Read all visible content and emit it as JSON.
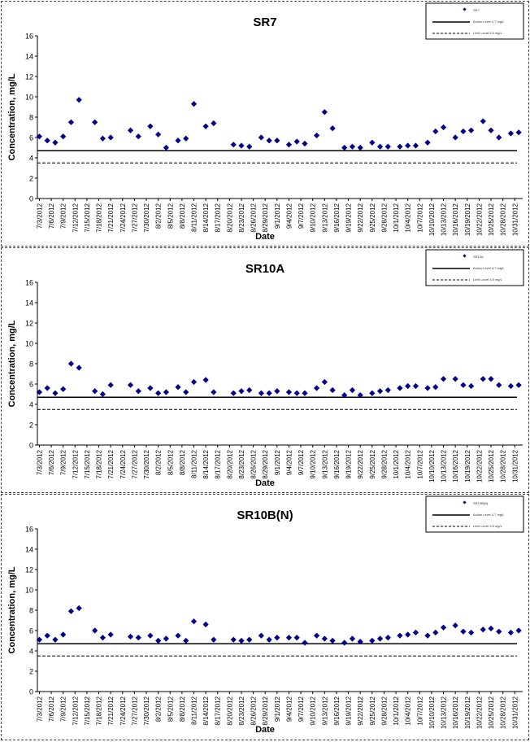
{
  "chart_data": [
    {
      "type": "scatter",
      "title": "SR7",
      "xlabel": "Date",
      "ylabel": "Concentration, mg/L",
      "ylim": [
        0,
        16
      ],
      "yticks": [
        "0",
        "2",
        "4",
        "6",
        "8",
        "10",
        "12",
        "14",
        "16"
      ],
      "xticks": [
        "7/3/2012",
        "7/6/2012",
        "7/9/2012",
        "7/12/2012",
        "7/15/2012",
        "7/18/2012",
        "7/21/2012",
        "7/24/2012",
        "7/27/2012",
        "7/30/2012",
        "8/2/2012",
        "8/5/2012",
        "8/8/2012",
        "8/11/2012",
        "8/14/2012",
        "8/17/2012",
        "8/20/2012",
        "8/23/2012",
        "8/26/2012",
        "8/29/2012",
        "9/1/2012",
        "9/4/2012",
        "9/7/2012",
        "9/10/2012",
        "9/13/2012",
        "9/16/2012",
        "9/19/2012",
        "9/22/2012",
        "9/25/2012",
        "9/28/2012",
        "10/1/2012",
        "10/4/2012",
        "10/7/2012",
        "10/10/2012",
        "10/13/2012",
        "10/16/2012",
        "10/19/2012",
        "10/22/2012",
        "10/25/2012",
        "10/28/2012",
        "10/31/2012"
      ],
      "grid": false,
      "legend_position": "top-right",
      "legend": [
        "SR7",
        "Action Level 4.7 mg/L",
        "Limit Level 3.5 mg/L"
      ],
      "hlines": [
        4.7,
        3.5
      ],
      "x": [
        "7/3/2012",
        "7/5/2012",
        "7/7/2012",
        "7/9/2012",
        "7/11/2012",
        "7/13/2012",
        "7/17/2012",
        "7/19/2012",
        "7/21/2012",
        "7/26/2012",
        "7/28/2012",
        "7/31/2012",
        "8/2/2012",
        "8/4/2012",
        "8/7/2012",
        "8/9/2012",
        "8/11/2012",
        "8/14/2012",
        "8/16/2012",
        "8/21/2012",
        "8/23/2012",
        "8/25/2012",
        "8/28/2012",
        "8/30/2012",
        "9/1/2012",
        "9/4/2012",
        "9/6/2012",
        "9/8/2012",
        "9/11/2012",
        "9/13/2012",
        "9/15/2012",
        "9/18/2012",
        "9/20/2012",
        "9/22/2012",
        "9/25/2012",
        "9/27/2012",
        "9/29/2012",
        "10/2/2012",
        "10/4/2012",
        "10/6/2012",
        "10/9/2012",
        "10/11/2012",
        "10/13/2012",
        "10/16/2012",
        "10/18/2012",
        "10/20/2012",
        "10/23/2012",
        "10/25/2012",
        "10/27/2012",
        "10/30/2012",
        "11/1/2012"
      ],
      "y": [
        6.1,
        5.7,
        5.5,
        6.1,
        7.5,
        9.7,
        7.5,
        5.9,
        6.0,
        6.7,
        6.1,
        7.1,
        6.3,
        5.0,
        5.7,
        5.9,
        9.3,
        7.1,
        7.4,
        5.3,
        5.2,
        5.1,
        6.0,
        5.7,
        5.7,
        5.3,
        5.6,
        5.4,
        6.2,
        8.5,
        6.9,
        5.0,
        5.1,
        5.0,
        5.5,
        5.1,
        5.1,
        5.1,
        5.2,
        5.2,
        5.5,
        6.6,
        7.0,
        6.0,
        6.6,
        6.7,
        7.6,
        6.7,
        6.0,
        6.4,
        6.5
      ]
    },
    {
      "type": "scatter",
      "title": "SR10A",
      "xlabel": "Date",
      "ylabel": "Concentration, mg/L",
      "ylim": [
        0,
        16
      ],
      "yticks": [
        "0",
        "2",
        "4",
        "6",
        "8",
        "10",
        "12",
        "14",
        "16"
      ],
      "xticks": [
        "7/3/2012",
        "7/6/2012",
        "7/9/2012",
        "7/12/2012",
        "7/15/2012",
        "7/18/2012",
        "7/21/2012",
        "7/24/2012",
        "7/27/2012",
        "7/30/2012",
        "8/2/2012",
        "8/5/2012",
        "8/8/2012",
        "8/11/2012",
        "8/14/2012",
        "8/17/2012",
        "8/20/2012",
        "8/23/2012",
        "8/26/2012",
        "8/29/2012",
        "9/1/2012",
        "9/4/2012",
        "9/7/2012",
        "9/10/2012",
        "9/13/2012",
        "9/16/2012",
        "9/19/2012",
        "9/22/2012",
        "9/25/2012",
        "9/28/2012",
        "10/1/2012",
        "10/4/2012",
        "10/7/2012",
        "10/10/2012",
        "10/13/2012",
        "10/16/2012",
        "10/19/2012",
        "10/22/2012",
        "10/25/2012",
        "10/28/2012",
        "10/31/2012"
      ],
      "grid": false,
      "legend_position": "top-right",
      "legend": [
        "SR10A",
        "Action Level 4.7 mg/L",
        "Limit Level 3.5 mg/L"
      ],
      "hlines": [
        4.7,
        3.5
      ],
      "x": [
        "7/3/2012",
        "7/5/2012",
        "7/7/2012",
        "7/9/2012",
        "7/11/2012",
        "7/13/2012",
        "7/17/2012",
        "7/19/2012",
        "7/21/2012",
        "7/26/2012",
        "7/28/2012",
        "7/31/2012",
        "8/2/2012",
        "8/4/2012",
        "8/7/2012",
        "8/9/2012",
        "8/11/2012",
        "8/14/2012",
        "8/16/2012",
        "8/21/2012",
        "8/23/2012",
        "8/25/2012",
        "8/28/2012",
        "8/30/2012",
        "9/1/2012",
        "9/4/2012",
        "9/6/2012",
        "9/8/2012",
        "9/11/2012",
        "9/13/2012",
        "9/15/2012",
        "9/18/2012",
        "9/20/2012",
        "9/22/2012",
        "9/25/2012",
        "9/27/2012",
        "9/29/2012",
        "10/2/2012",
        "10/4/2012",
        "10/6/2012",
        "10/9/2012",
        "10/11/2012",
        "10/13/2012",
        "10/16/2012",
        "10/18/2012",
        "10/20/2012",
        "10/23/2012",
        "10/25/2012",
        "10/27/2012",
        "10/30/2012",
        "11/1/2012"
      ],
      "y": [
        5.2,
        5.6,
        5.1,
        5.5,
        8.0,
        7.6,
        5.3,
        5.0,
        5.9,
        5.9,
        5.3,
        5.6,
        5.1,
        5.2,
        5.7,
        5.2,
        6.2,
        6.4,
        5.2,
        5.1,
        5.3,
        5.4,
        5.1,
        5.1,
        5.3,
        5.2,
        5.1,
        5.1,
        5.6,
        6.2,
        5.4,
        4.9,
        5.4,
        4.9,
        5.1,
        5.3,
        5.4,
        5.6,
        5.8,
        5.8,
        5.6,
        5.7,
        6.5,
        6.5,
        5.9,
        5.8,
        6.5,
        6.5,
        5.9,
        5.8,
        5.9
      ]
    },
    {
      "type": "scatter",
      "title": "SR10B(N)",
      "xlabel": "Date",
      "ylabel": "Concentration, mg/L",
      "ylim": [
        0,
        16
      ],
      "yticks": [
        "0",
        "2",
        "4",
        "6",
        "8",
        "10",
        "12",
        "14",
        "16"
      ],
      "xticks": [
        "7/3/2012",
        "7/6/2012",
        "7/9/2012",
        "7/12/2012",
        "7/15/2012",
        "7/18/2012",
        "7/21/2012",
        "7/24/2012",
        "7/27/2012",
        "7/30/2012",
        "8/2/2012",
        "8/5/2012",
        "8/8/2012",
        "8/11/2012",
        "8/14/2012",
        "8/17/2012",
        "8/20/2012",
        "8/23/2012",
        "8/26/2012",
        "8/29/2012",
        "9/1/2012",
        "9/4/2012",
        "9/7/2012",
        "9/10/2012",
        "9/13/2012",
        "9/16/2012",
        "9/19/2012",
        "9/22/2012",
        "9/25/2012",
        "9/28/2012",
        "10/1/2012",
        "10/4/2012",
        "10/7/2012",
        "10/10/2012",
        "10/13/2012",
        "10/16/2012",
        "10/19/2012",
        "10/22/2012",
        "10/25/2012",
        "10/28/2012",
        "10/31/2012"
      ],
      "grid": false,
      "legend_position": "top-right",
      "legend": [
        "SR10B(N)",
        "Action Level 4.7 mg/L",
        "Limit Level 3.5 mg/L"
      ],
      "hlines": [
        4.7,
        3.5
      ],
      "x": [
        "7/3/2012",
        "7/5/2012",
        "7/7/2012",
        "7/9/2012",
        "7/11/2012",
        "7/13/2012",
        "7/17/2012",
        "7/19/2012",
        "7/21/2012",
        "7/26/2012",
        "7/28/2012",
        "7/31/2012",
        "8/2/2012",
        "8/4/2012",
        "8/7/2012",
        "8/9/2012",
        "8/11/2012",
        "8/14/2012",
        "8/16/2012",
        "8/21/2012",
        "8/23/2012",
        "8/25/2012",
        "8/28/2012",
        "8/30/2012",
        "9/1/2012",
        "9/4/2012",
        "9/6/2012",
        "9/8/2012",
        "9/11/2012",
        "9/13/2012",
        "9/15/2012",
        "9/18/2012",
        "9/20/2012",
        "9/22/2012",
        "9/25/2012",
        "9/27/2012",
        "9/29/2012",
        "10/2/2012",
        "10/4/2012",
        "10/6/2012",
        "10/9/2012",
        "10/11/2012",
        "10/13/2012",
        "10/16/2012",
        "10/18/2012",
        "10/20/2012",
        "10/23/2012",
        "10/25/2012",
        "10/27/2012",
        "10/30/2012",
        "11/1/2012"
      ],
      "y": [
        5.1,
        5.5,
        5.1,
        5.6,
        7.9,
        8.2,
        6.0,
        5.3,
        5.6,
        5.4,
        5.3,
        5.5,
        5.0,
        5.2,
        5.5,
        5.0,
        6.9,
        6.6,
        5.1,
        5.1,
        5.0,
        5.1,
        5.5,
        5.1,
        5.3,
        5.3,
        5.3,
        4.8,
        5.5,
        5.2,
        5.0,
        4.8,
        5.2,
        4.9,
        5.0,
        5.2,
        5.3,
        5.5,
        5.6,
        5.8,
        5.5,
        5.8,
        6.3,
        6.5,
        5.9,
        5.8,
        6.1,
        6.2,
        5.9,
        5.8,
        6.0
      ]
    }
  ],
  "colors": {
    "marker": "#00008B",
    "axis": "#000000",
    "frame": "#444444"
  }
}
